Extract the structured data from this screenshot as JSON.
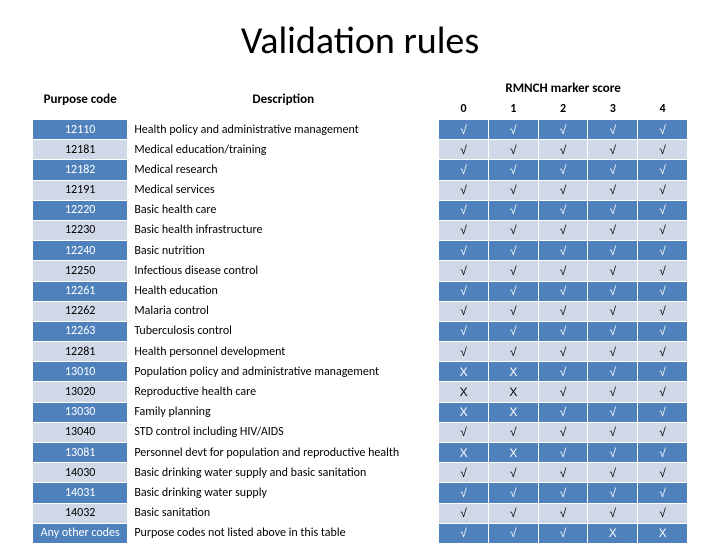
{
  "title": "Validation rules",
  "table": {
    "headers": {
      "purpose_code": "Purpose code",
      "description": "Description",
      "rmnch_label": "RMNCH marker score",
      "scores": [
        "0",
        "1",
        "2",
        "3",
        "4"
      ]
    },
    "check": "√",
    "cross": "X",
    "rows": [
      {
        "code": "12110",
        "desc": "Health policy and administrative management",
        "marks": [
          "√",
          "√",
          "√",
          "√",
          "√"
        ]
      },
      {
        "code": "12181",
        "desc": "Medical education/training",
        "marks": [
          "√",
          "√",
          "√",
          "√",
          "√"
        ]
      },
      {
        "code": "12182",
        "desc": "Medical research",
        "marks": [
          "√",
          "√",
          "√",
          "√",
          "√"
        ]
      },
      {
        "code": "12191",
        "desc": "Medical services",
        "marks": [
          "√",
          "√",
          "√",
          "√",
          "√"
        ]
      },
      {
        "code": "12220",
        "desc": "Basic health care",
        "marks": [
          "√",
          "√",
          "√",
          "√",
          "√"
        ]
      },
      {
        "code": "12230",
        "desc": "Basic health infrastructure",
        "marks": [
          "√",
          "√",
          "√",
          "√",
          "√"
        ]
      },
      {
        "code": "12240",
        "desc": "Basic nutrition",
        "marks": [
          "√",
          "√",
          "√",
          "√",
          "√"
        ]
      },
      {
        "code": "12250",
        "desc": "Infectious disease control",
        "marks": [
          "√",
          "√",
          "√",
          "√",
          "√"
        ]
      },
      {
        "code": "12261",
        "desc": "Health education",
        "marks": [
          "√",
          "√",
          "√",
          "√",
          "√"
        ]
      },
      {
        "code": "12262",
        "desc": "Malaria control",
        "marks": [
          "√",
          "√",
          "√",
          "√",
          "√"
        ]
      },
      {
        "code": "12263",
        "desc": "Tuberculosis control",
        "marks": [
          "√",
          "√",
          "√",
          "√",
          "√"
        ]
      },
      {
        "code": "12281",
        "desc": "Health personnel development",
        "marks": [
          "√",
          "√",
          "√",
          "√",
          "√"
        ]
      },
      {
        "code": "13010",
        "desc": "Population policy and administrative management",
        "marks": [
          "X",
          "X",
          "√",
          "√",
          "√"
        ]
      },
      {
        "code": "13020",
        "desc": "Reproductive health care",
        "marks": [
          "X",
          "X",
          "√",
          "√",
          "√"
        ]
      },
      {
        "code": "13030",
        "desc": "Family planning",
        "marks": [
          "X",
          "X",
          "√",
          "√",
          "√"
        ]
      },
      {
        "code": "13040",
        "desc": "STD control including HIV/AIDS",
        "marks": [
          "√",
          "√",
          "√",
          "√",
          "√"
        ]
      },
      {
        "code": "13081",
        "desc": "Personnel devt for population and reproductive health",
        "marks": [
          "X",
          "X",
          "√",
          "√",
          "√"
        ]
      },
      {
        "code": "14030",
        "desc": "Basic drinking water supply and basic sanitation",
        "marks": [
          "√",
          "√",
          "√",
          "√",
          "√"
        ]
      },
      {
        "code": "14031",
        "desc": "Basic drinking water supply",
        "marks": [
          "√",
          "√",
          "√",
          "√",
          "√"
        ]
      },
      {
        "code": "14032",
        "desc": "Basic sanitation",
        "marks": [
          "√",
          "√",
          "√",
          "√",
          "√"
        ]
      },
      {
        "code": "Any other codes",
        "desc": "Purpose codes not listed above in this table",
        "marks": [
          "√",
          "√",
          "√",
          "X",
          "X"
        ]
      }
    ]
  },
  "colors": {
    "band_dark": "#4f81bd",
    "band_light": "#d0d8e8",
    "border": "#ffffff"
  }
}
